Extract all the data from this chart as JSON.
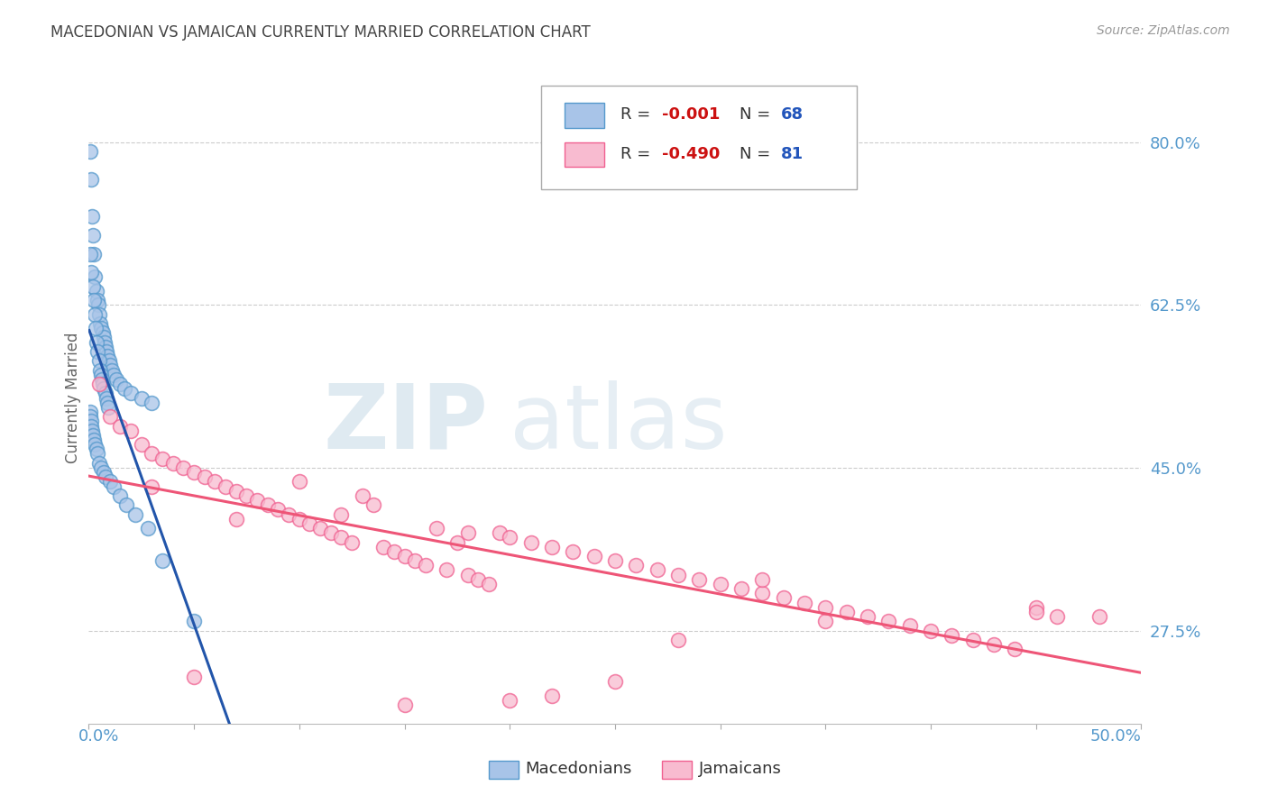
{
  "title": "MACEDONIAN VS JAMAICAN CURRENTLY MARRIED CORRELATION CHART",
  "source": "Source: ZipAtlas.com",
  "ylabel": "Currently Married",
  "xlim": [
    0.0,
    50.0
  ],
  "ylim": [
    17.5,
    87.5
  ],
  "yticks": [
    27.5,
    45.0,
    62.5,
    80.0
  ],
  "ytick_labels": [
    "27.5%",
    "45.0%",
    "62.5%",
    "80.0%"
  ],
  "blue_scatter_color_fill": "#a8c4e8",
  "blue_scatter_color_edge": "#5599cc",
  "pink_scatter_color_fill": "#f8bbd0",
  "pink_scatter_color_edge": "#f06090",
  "blue_line_color": "#2255aa",
  "pink_line_color": "#ee5577",
  "legend_r1": "R = ",
  "legend_r1_val": "-0.001",
  "legend_n1": "N = ",
  "legend_n1_val": "68",
  "legend_r2": "R = ",
  "legend_r2_val": "-0.490",
  "legend_n2": "N = ",
  "legend_n2_val": "81",
  "grid_color": "#cccccc",
  "tick_label_color": "#5599cc",
  "title_color": "#444444",
  "ylabel_color": "#666666",
  "watermark_zip_color": "#dce8f0",
  "watermark_atlas_color": "#dce8f0",
  "blue_x": [
    0.05,
    0.1,
    0.15,
    0.2,
    0.25,
    0.3,
    0.35,
    0.4,
    0.45,
    0.5,
    0.55,
    0.6,
    0.65,
    0.7,
    0.75,
    0.8,
    0.85,
    0.9,
    0.95,
    1.0,
    1.1,
    1.2,
    1.3,
    1.5,
    1.7,
    2.0,
    2.5,
    3.0,
    0.08,
    0.12,
    0.18,
    0.22,
    0.28,
    0.32,
    0.38,
    0.42,
    0.48,
    0.52,
    0.58,
    0.62,
    0.68,
    0.72,
    0.78,
    0.82,
    0.88,
    0.92,
    0.05,
    0.07,
    0.1,
    0.13,
    0.16,
    0.2,
    0.25,
    0.3,
    0.35,
    0.4,
    0.5,
    0.6,
    0.7,
    0.8,
    1.0,
    1.2,
    1.5,
    1.8,
    2.2,
    2.8,
    3.5,
    5.0
  ],
  "blue_y": [
    79.0,
    76.0,
    72.0,
    70.0,
    68.0,
    65.5,
    64.0,
    63.0,
    62.5,
    61.5,
    60.5,
    60.0,
    59.5,
    59.0,
    58.5,
    58.0,
    57.5,
    57.0,
    56.5,
    56.0,
    55.5,
    55.0,
    54.5,
    54.0,
    53.5,
    53.0,
    52.5,
    52.0,
    68.0,
    66.0,
    64.5,
    63.0,
    61.5,
    60.0,
    58.5,
    57.5,
    56.5,
    55.5,
    55.0,
    54.5,
    54.0,
    53.5,
    53.0,
    52.5,
    52.0,
    51.5,
    51.0,
    50.5,
    50.0,
    49.5,
    49.0,
    48.5,
    48.0,
    47.5,
    47.0,
    46.5,
    45.5,
    45.0,
    44.5,
    44.0,
    43.5,
    43.0,
    42.0,
    41.0,
    40.0,
    38.5,
    35.0,
    28.5
  ],
  "pink_x": [
    0.5,
    1.0,
    1.5,
    2.0,
    2.5,
    3.0,
    3.5,
    4.0,
    4.5,
    5.0,
    5.5,
    6.0,
    6.5,
    7.0,
    7.5,
    8.0,
    8.5,
    9.0,
    9.5,
    10.0,
    10.5,
    11.0,
    11.5,
    12.0,
    12.5,
    13.0,
    13.5,
    14.0,
    14.5,
    15.0,
    15.5,
    16.0,
    16.5,
    17.0,
    17.5,
    18.0,
    18.5,
    19.0,
    19.5,
    20.0,
    21.0,
    22.0,
    23.0,
    24.0,
    25.0,
    26.0,
    27.0,
    28.0,
    29.0,
    30.0,
    31.0,
    32.0,
    33.0,
    34.0,
    35.0,
    36.0,
    37.0,
    38.0,
    39.0,
    40.0,
    41.0,
    42.0,
    43.0,
    44.0,
    45.0,
    46.0,
    3.0,
    7.0,
    12.0,
    18.0,
    25.0,
    32.0,
    22.0,
    15.0,
    28.0,
    10.0,
    5.0,
    20.0,
    35.0,
    45.0,
    48.0
  ],
  "pink_y": [
    54.0,
    50.5,
    49.5,
    49.0,
    47.5,
    46.5,
    46.0,
    45.5,
    45.0,
    44.5,
    44.0,
    43.5,
    43.0,
    42.5,
    42.0,
    41.5,
    41.0,
    40.5,
    40.0,
    39.5,
    39.0,
    38.5,
    38.0,
    37.5,
    37.0,
    42.0,
    41.0,
    36.5,
    36.0,
    35.5,
    35.0,
    34.5,
    38.5,
    34.0,
    37.0,
    33.5,
    33.0,
    32.5,
    38.0,
    37.5,
    37.0,
    36.5,
    36.0,
    35.5,
    35.0,
    34.5,
    34.0,
    33.5,
    33.0,
    32.5,
    32.0,
    31.5,
    31.0,
    30.5,
    30.0,
    29.5,
    29.0,
    28.5,
    28.0,
    27.5,
    27.0,
    26.5,
    26.0,
    25.5,
    30.0,
    29.0,
    43.0,
    39.5,
    40.0,
    38.0,
    22.0,
    33.0,
    20.5,
    19.5,
    26.5,
    43.5,
    22.5,
    20.0,
    28.5,
    29.5,
    29.0
  ]
}
